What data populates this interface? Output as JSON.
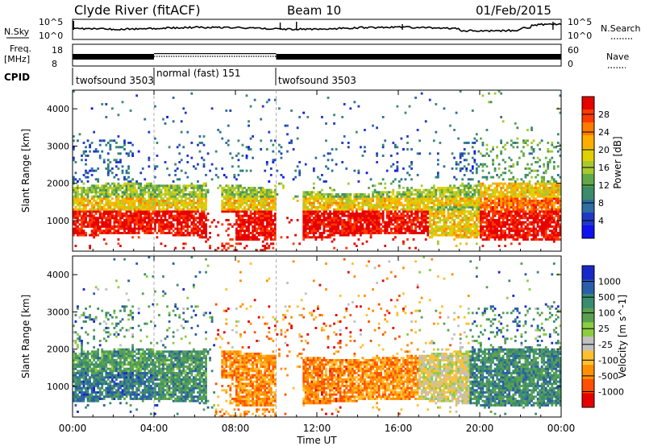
{
  "header": {
    "station": "Clyde River (fitACF)",
    "beam": "Beam 10",
    "date": "01/Feb/2015"
  },
  "top_panels": {
    "nsky_label": "N.Sky",
    "nsky_ticks": [
      "10^5",
      "10^0"
    ],
    "nsearch_label": "N.Search",
    "nsearch_ticks": [
      "10^5",
      "10^0"
    ],
    "freq_label_line1": "Freq.",
    "freq_label_line2": "[MHz]",
    "freq_ticks": [
      "18",
      "8"
    ],
    "nave_label": "Nave",
    "nave_ticks": [
      "60",
      "0"
    ],
    "cpid_label": "CPID",
    "cpid_segments": [
      {
        "label": "twofsound 3503",
        "start_hour": 0,
        "end_hour": 4
      },
      {
        "label": "normal (fast) 151",
        "start_hour": 4,
        "end_hour": 10
      },
      {
        "label": "twofsound 3503",
        "start_hour": 10,
        "end_hour": 24
      }
    ]
  },
  "chart_data": [
    {
      "type": "heatmap",
      "title": "",
      "xlabel": "",
      "ylabel": "Slant Range [km]",
      "xlim": [
        0,
        24
      ],
      "ylim": [
        180,
        4500
      ],
      "yticks": [
        1000,
        2000,
        3000,
        4000
      ],
      "colorbar": {
        "label": "Power [dB]",
        "ticks": [
          "28",
          "24",
          "20",
          "16",
          "12",
          "8",
          "4"
        ],
        "colors": [
          "#e60000",
          "#ff3a00",
          "#ff7a00",
          "#ffae00",
          "#e0d000",
          "#a8c830",
          "#60a848",
          "#3a8c6a",
          "#2e6ea0",
          "#2038c8",
          "#1010f0"
        ]
      },
      "dominant_echo_bands_km": [
        [
          600,
          1300
        ],
        [
          1300,
          2000
        ]
      ]
    },
    {
      "type": "heatmap",
      "title": "",
      "xlabel": "Time UT",
      "ylabel": "Slant Range [km]",
      "xlim": [
        0,
        24
      ],
      "ylim": [
        180,
        4500
      ],
      "yticks": [
        1000,
        2000,
        3000,
        4000
      ],
      "xticks": [
        "00:00",
        "04:00",
        "08:00",
        "12:00",
        "16:00",
        "20:00",
        "00:00"
      ],
      "colorbar": {
        "label": "Velocity [m s^-1]",
        "ticks": [
          "1000",
          "500",
          "100",
          "25",
          "-25",
          "-100",
          "-500",
          "-1000"
        ],
        "colors": [
          "#1828c8",
          "#2a5ea8",
          "#3a8c70",
          "#5aa050",
          "#8ccc40",
          "#c0c0c0",
          "#ffc030",
          "#ff9000",
          "#ff5000",
          "#e60000"
        ]
      },
      "dominant_echo_bands_km": [
        [
          500,
          1300
        ],
        [
          1300,
          1900
        ]
      ]
    }
  ],
  "xaxis": {
    "ticks": [
      "00:00",
      "04:00",
      "08:00",
      "12:00",
      "16:00",
      "20:00",
      "00:00"
    ],
    "label": "Time UT"
  }
}
